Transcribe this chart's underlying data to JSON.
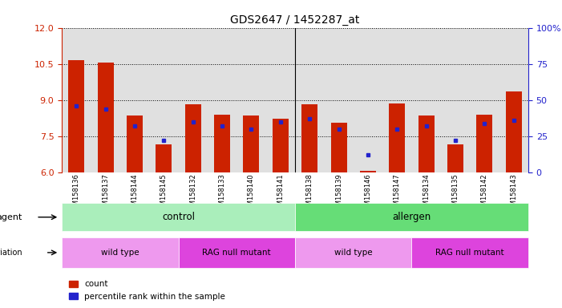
{
  "title": "GDS2647 / 1452287_at",
  "samples": [
    "GSM158136",
    "GSM158137",
    "GSM158144",
    "GSM158145",
    "GSM158132",
    "GSM158133",
    "GSM158140",
    "GSM158141",
    "GSM158138",
    "GSM158139",
    "GSM158146",
    "GSM158147",
    "GSM158134",
    "GSM158135",
    "GSM158142",
    "GSM158143"
  ],
  "bar_heights": [
    10.65,
    10.57,
    8.35,
    7.18,
    8.82,
    8.38,
    8.35,
    8.22,
    8.82,
    8.05,
    6.08,
    8.85,
    8.35,
    7.17,
    8.38,
    9.35
  ],
  "blue_values": [
    46,
    44,
    32,
    22,
    35,
    32,
    30,
    35,
    37,
    30,
    12,
    30,
    32,
    22,
    34,
    36
  ],
  "ylim_left": [
    6,
    12
  ],
  "ylim_right": [
    0,
    100
  ],
  "yticks_left": [
    6,
    7.5,
    9,
    10.5,
    12
  ],
  "yticks_right": [
    0,
    25,
    50,
    75,
    100
  ],
  "bar_color": "#cc2200",
  "blue_color": "#2222cc",
  "bg_plot": "#e0e0e0",
  "bg_figure": "#ffffff",
  "agent_control_color": "#aaeebb",
  "agent_allergen_color": "#66dd77",
  "genotype_wt_color": "#ee99ee",
  "genotype_rag_color": "#dd44dd",
  "control_count": 8,
  "wt_control_count": 4,
  "rag_control_count": 4,
  "wt_allergen_count": 4,
  "rag_allergen_count": 4,
  "left_label_color": "#cc2200",
  "right_label_color": "#2222cc",
  "base_value": 6.0
}
